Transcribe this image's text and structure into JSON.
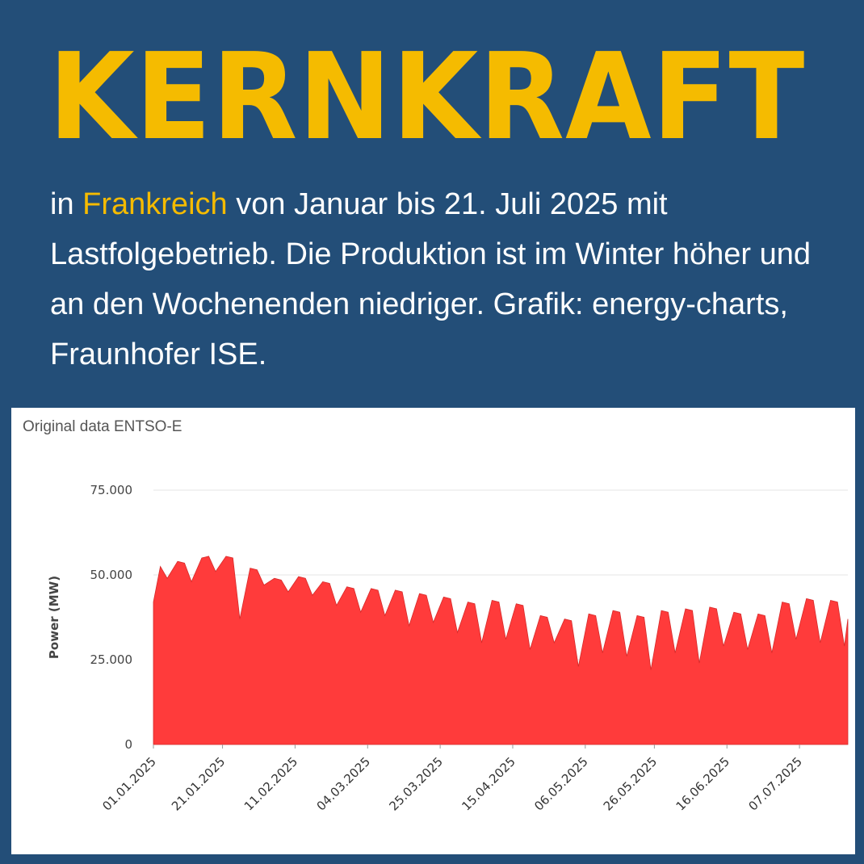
{
  "headline": "KERNKRAFT",
  "intro": {
    "part1": "in ",
    "highlight": "Frankreich",
    "part2": " von Januar bis 21. Juli 2025 mit Lastfolgebetrieb. Die Produktion ist im Winter höher und an den Wochenenden niedriger. Grafik: energy-charts, Fraunhofer ISE."
  },
  "colors": {
    "background": "#234e78",
    "headline": "#f5bb00",
    "highlight": "#f5bb00",
    "series": "#ff3b3b",
    "series_edge": "#d62a2a"
  },
  "chart_data": {
    "type": "area",
    "source_label": "Original data ENTSO-E",
    "ylabel": "Power (MW)",
    "xlabel": "",
    "ylim": [
      0,
      75000
    ],
    "yticks": [
      "0",
      "25.000",
      "50.000",
      "75.000"
    ],
    "ytick_values": [
      0,
      25000,
      50000,
      75000
    ],
    "grid": true,
    "x_range": [
      "2025-01-01",
      "2025-07-21"
    ],
    "x_ticks": [
      "01.01.2025",
      "21.01.2025",
      "11.02.2025",
      "04.03.2025",
      "25.03.2025",
      "15.04.2025",
      "06.05.2025",
      "26.05.2025",
      "16.06.2025",
      "07.07.2025"
    ],
    "x_tick_dates": [
      "2025-01-01",
      "2025-01-21",
      "2025-02-11",
      "2025-03-04",
      "2025-03-25",
      "2025-04-15",
      "2025-05-06",
      "2025-05-26",
      "2025-06-16",
      "2025-07-07"
    ],
    "series": [
      {
        "x": [
          "2025-01-01",
          "2025-01-03",
          "2025-01-05",
          "2025-01-08",
          "2025-01-10",
          "2025-01-12",
          "2025-01-15",
          "2025-01-17",
          "2025-01-19",
          "2025-01-22",
          "2025-01-24",
          "2025-01-26",
          "2025-01-29",
          "2025-01-31",
          "2025-02-02",
          "2025-02-05",
          "2025-02-07",
          "2025-02-09",
          "2025-02-12",
          "2025-02-14",
          "2025-02-16",
          "2025-02-19",
          "2025-02-21",
          "2025-02-23",
          "2025-02-26",
          "2025-02-28",
          "2025-03-02",
          "2025-03-05",
          "2025-03-07",
          "2025-03-09",
          "2025-03-12",
          "2025-03-14",
          "2025-03-16",
          "2025-03-19",
          "2025-03-21",
          "2025-03-23",
          "2025-03-26",
          "2025-03-28",
          "2025-03-30",
          "2025-04-02",
          "2025-04-04",
          "2025-04-06",
          "2025-04-09",
          "2025-04-11",
          "2025-04-13",
          "2025-04-16",
          "2025-04-18",
          "2025-04-20",
          "2025-04-23",
          "2025-04-25",
          "2025-04-27",
          "2025-04-30",
          "2025-05-02",
          "2025-05-04",
          "2025-05-07",
          "2025-05-09",
          "2025-05-11",
          "2025-05-14",
          "2025-05-16",
          "2025-05-18",
          "2025-05-21",
          "2025-05-23",
          "2025-05-25",
          "2025-05-28",
          "2025-05-30",
          "2025-06-01",
          "2025-06-04",
          "2025-06-06",
          "2025-06-08",
          "2025-06-11",
          "2025-06-13",
          "2025-06-15",
          "2025-06-18",
          "2025-06-20",
          "2025-06-22",
          "2025-06-25",
          "2025-06-27",
          "2025-06-29",
          "2025-07-02",
          "2025-07-04",
          "2025-07-06",
          "2025-07-09",
          "2025-07-11",
          "2025-07-13",
          "2025-07-16",
          "2025-07-18",
          "2025-07-20",
          "2025-07-21"
        ],
        "values": [
          42000,
          52500,
          49000,
          54000,
          53500,
          48000,
          55000,
          55500,
          51000,
          55500,
          55000,
          37000,
          52000,
          51500,
          47000,
          49000,
          48500,
          45000,
          49500,
          49000,
          44000,
          48000,
          47500,
          41000,
          46500,
          46000,
          39000,
          46000,
          45500,
          38000,
          45500,
          45000,
          35000,
          44500,
          44000,
          36000,
          43500,
          43000,
          33000,
          42000,
          41500,
          30000,
          42500,
          42000,
          31000,
          41500,
          41000,
          28000,
          38000,
          37500,
          30000,
          37000,
          36500,
          23000,
          38500,
          38000,
          27000,
          39500,
          39000,
          26000,
          38000,
          37500,
          22000,
          39500,
          39000,
          27000,
          40000,
          39500,
          24000,
          40500,
          40000,
          29000,
          39000,
          38500,
          28000,
          38500,
          38000,
          27000,
          42000,
          41500,
          31000,
          43000,
          42500,
          30000,
          42500,
          42000,
          29000,
          37000
        ]
      }
    ]
  }
}
